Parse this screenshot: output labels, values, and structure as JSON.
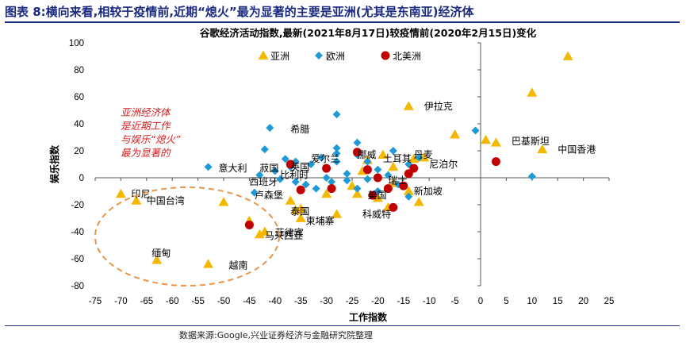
{
  "header": {
    "title": "图表 8:横向来看,相较于疫情前,近期“熄火”最为显著的主要是亚洲(尤其是东南亚)经济体"
  },
  "source": "数据来源:Google,兴业证券经济与金融研究院整理",
  "annotation": {
    "lines": [
      "亚洲经济体",
      "是近期工作",
      "与娱乐“熄火”",
      "最为显著的"
    ],
    "color": "#d62020"
  },
  "chart_data": {
    "type": "scatter",
    "title": "谷歌经济活动指数,最新(2021年8月17日)较疫情前(2020年2月15日)变化",
    "xlabel": "工作指数",
    "ylabel": "娱乐指数",
    "xlim": [
      -75,
      25
    ],
    "ylim": [
      -80,
      100
    ],
    "xticks": [
      -75,
      -70,
      -65,
      -60,
      -55,
      -50,
      -45,
      -40,
      -35,
      -30,
      -25,
      -20,
      -15,
      -10,
      -5,
      0,
      5,
      10,
      15,
      20,
      25
    ],
    "yticks": [
      100,
      80,
      60,
      40,
      20,
      0,
      -20,
      -40,
      -60,
      -80
    ],
    "grid": false,
    "legend": "top-left",
    "series": [
      {
        "name": "亚洲",
        "marker": "triangle",
        "color": "#f5b800",
        "points": [
          [
            17,
            90
          ],
          [
            10,
            63
          ],
          [
            -14,
            53
          ],
          [
            -5,
            32
          ],
          [
            1,
            28
          ],
          [
            3,
            26
          ],
          [
            12,
            21
          ],
          [
            -70,
            -12
          ],
          [
            -67,
            -17
          ],
          [
            -50,
            -18
          ],
          [
            -63,
            -61
          ],
          [
            -53,
            -64
          ],
          [
            -45,
            -32
          ],
          [
            -43,
            -42
          ],
          [
            -42,
            -40
          ],
          [
            -37,
            -17
          ],
          [
            -35,
            -23
          ],
          [
            -35,
            -30
          ],
          [
            -36,
            -24
          ],
          [
            -28,
            -27
          ],
          [
            -20,
            -15
          ],
          [
            -18,
            -22
          ],
          [
            -14,
            -10
          ],
          [
            -12,
            -18
          ],
          [
            -11,
            15
          ],
          [
            -13,
            14
          ],
          [
            -17,
            -4
          ],
          [
            -24,
            -12
          ],
          [
            -30,
            -12
          ],
          [
            -25,
            -6
          ],
          [
            -23,
            5
          ],
          [
            -22,
            13
          ],
          [
            -17,
            8
          ],
          [
            -19,
            17
          ]
        ]
      },
      {
        "name": "欧洲",
        "marker": "diamond",
        "color": "#1e9ad6",
        "points": [
          [
            -1,
            35
          ],
          [
            -28,
            47
          ],
          [
            -41,
            37
          ],
          [
            -42,
            21
          ],
          [
            -53,
            8
          ],
          [
            -44,
            -11
          ],
          [
            -43,
            2
          ],
          [
            -40,
            5
          ],
          [
            -37,
            8
          ],
          [
            -38,
            14
          ],
          [
            -36,
            12
          ],
          [
            -33,
            10
          ],
          [
            -31,
            15
          ],
          [
            -28,
            12
          ],
          [
            -28,
            18
          ],
          [
            -28,
            22
          ],
          [
            -24,
            26
          ],
          [
            -24,
            17
          ],
          [
            -22,
            12
          ],
          [
            -20,
            6
          ],
          [
            -17,
            20
          ],
          [
            -14,
            10
          ],
          [
            -12,
            15
          ],
          [
            -26,
            3
          ],
          [
            -30,
            0
          ],
          [
            -34,
            -5
          ],
          [
            -36,
            -3
          ],
          [
            -32,
            -8
          ],
          [
            -29,
            -3
          ],
          [
            -26,
            -2
          ],
          [
            -24,
            -8
          ],
          [
            -20,
            -10
          ],
          [
            -16,
            -5
          ],
          [
            -14,
            -14
          ],
          [
            -18,
            2
          ],
          [
            -39,
            -1
          ],
          [
            10,
            1
          ],
          [
            -22,
            -1
          ]
        ]
      },
      {
        "name": "北美洲",
        "marker": "circle",
        "color": "#c00000",
        "points": [
          [
            3,
            12
          ],
          [
            -24,
            19
          ],
          [
            -22,
            6
          ],
          [
            -14,
            3
          ],
          [
            -13,
            7
          ],
          [
            -20,
            0
          ],
          [
            -21,
            -13
          ],
          [
            -18,
            -8
          ],
          [
            -17,
            -22
          ],
          [
            -15,
            -6
          ],
          [
            -29,
            -8
          ],
          [
            -35,
            -9
          ],
          [
            -37,
            10
          ],
          [
            -45,
            -35
          ],
          [
            -30,
            7
          ]
        ]
      }
    ],
    "point_labels": [
      {
        "text": "伊拉克",
        "x": -11,
        "y": 53
      },
      {
        "text": "希腊",
        "x": -37,
        "y": 36
      },
      {
        "text": "巴基斯坦",
        "x": 6,
        "y": 27
      },
      {
        "text": "中国香港",
        "x": 15,
        "y": 21
      },
      {
        "text": "意大利",
        "x": -51,
        "y": 7
      },
      {
        "text": "菽国",
        "x": -43,
        "y": 7
      },
      {
        "text": "爱尔兰",
        "x": -33,
        "y": 14
      },
      {
        "text": "挪威",
        "x": -24,
        "y": 17
      },
      {
        "text": "土耳其",
        "x": -19,
        "y": 14
      },
      {
        "text": "丹麦",
        "x": -13,
        "y": 17
      },
      {
        "text": "尼泊尔",
        "x": -10,
        "y": 10
      },
      {
        "text": "英国",
        "x": -37,
        "y": 8
      },
      {
        "text": "比利时",
        "x": -39,
        "y": 2
      },
      {
        "text": "西班牙",
        "x": -45,
        "y": -3
      },
      {
        "text": "瑞士",
        "x": -18,
        "y": -2
      },
      {
        "text": "新加坡",
        "x": -13,
        "y": -10
      },
      {
        "text": "美国",
        "x": -22,
        "y": -13
      },
      {
        "text": "卢森堡",
        "x": -44,
        "y": -13
      },
      {
        "text": "印尼",
        "x": -68,
        "y": -12
      },
      {
        "text": "中国台湾",
        "x": -65,
        "y": -17
      },
      {
        "text": "泰国",
        "x": -37,
        "y": -25
      },
      {
        "text": "柬埔寨",
        "x": -34,
        "y": -32
      },
      {
        "text": "科威特",
        "x": -23,
        "y": -27
      },
      {
        "text": "菲律宾",
        "x": -40,
        "y": -41
      },
      {
        "text": "马来西亚",
        "x": -42,
        "y": -43
      },
      {
        "text": "缅甸",
        "x": -64,
        "y": -56
      },
      {
        "text": "越南",
        "x": -49,
        "y": -65
      }
    ]
  }
}
